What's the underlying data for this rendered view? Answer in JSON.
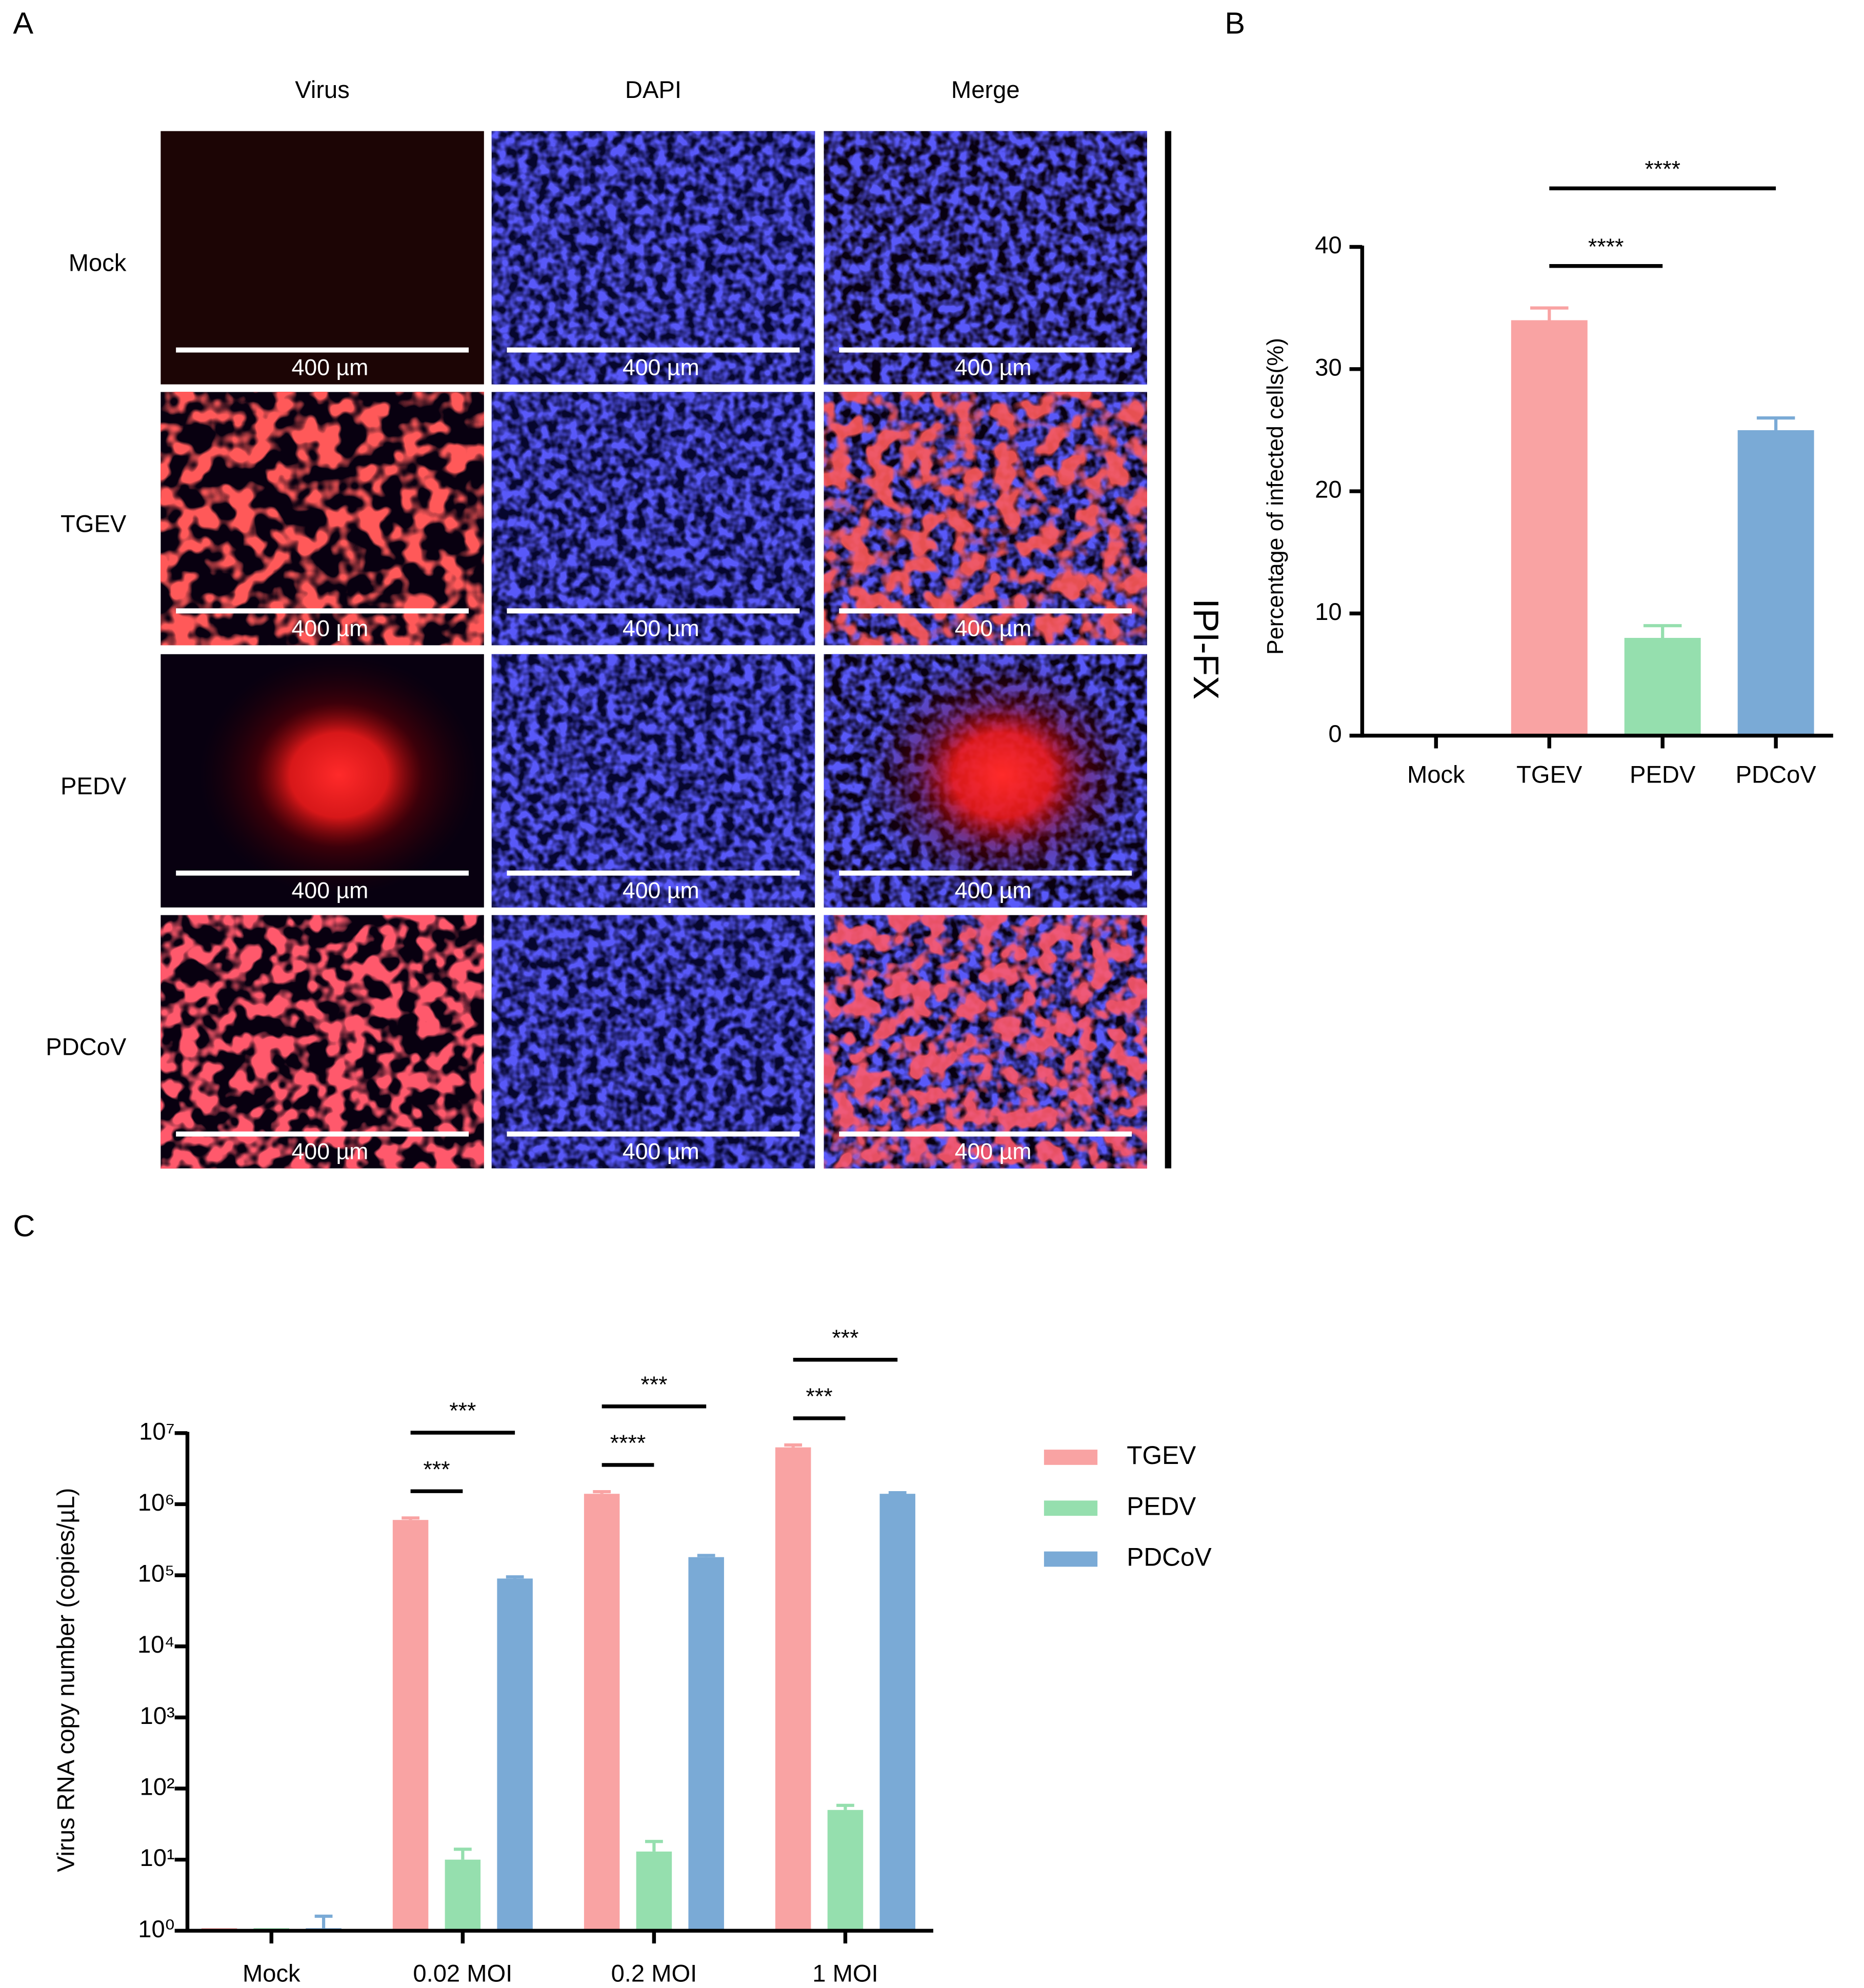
{
  "panel_labels": [
    "A",
    "B",
    "C"
  ],
  "micrographs": {
    "columns": [
      "Virus",
      "DAPI",
      "Merge"
    ],
    "rows": [
      "Mock",
      "TGEV",
      "PEDV",
      "PDCoV"
    ],
    "scale_bar": "400 µm",
    "side_label": "IPI-FX"
  },
  "chart_data": [
    {
      "type": "bar",
      "ylabel": "Percentage of infected cells(%)",
      "categories": [
        "Mock",
        "TGEV",
        "PEDV",
        "PDCoV"
      ],
      "values": [
        0,
        34,
        8,
        25
      ],
      "errors": [
        0,
        1,
        1,
        1
      ],
      "colors": [
        "#f9a3a3",
        "#f9a3a3",
        "#95dfae",
        "#7aaad6"
      ],
      "ylim": [
        0,
        40
      ],
      "yticks": [
        0,
        10,
        20,
        30,
        40
      ],
      "annotations": [
        {
          "label": "****",
          "between": [
            1,
            2
          ]
        },
        {
          "label": "****",
          "between": [
            1,
            3
          ]
        }
      ]
    },
    {
      "type": "grouped-bar",
      "ylabel": "Virus RNA copy number (copies/µL)",
      "log_scale": true,
      "categories": [
        "Mock",
        "0.02 MOI",
        "0.2 MOI",
        "1 MOI"
      ],
      "series": [
        {
          "name": "TGEV",
          "color": "#f9a3a3",
          "values": [
            1,
            600000,
            1400000,
            6300000
          ],
          "errors": [
            0,
            40000,
            100000,
            500000
          ]
        },
        {
          "name": "PEDV",
          "color": "#95dfae",
          "values": [
            1,
            10,
            13,
            50
          ],
          "errors": [
            0,
            4,
            5,
            8
          ]
        },
        {
          "name": "PDCoV",
          "color": "#7aaad6",
          "values": [
            1,
            90000,
            180000,
            1400000
          ],
          "errors": [
            0.6,
            5000,
            10000,
            50000
          ]
        }
      ],
      "ylim": [
        1,
        10000000
      ],
      "yticks": [
        {
          "value": 1,
          "label": "10⁰"
        },
        {
          "value": 10,
          "label": "10¹"
        },
        {
          "value": 100,
          "label": "10²"
        },
        {
          "value": 1000,
          "label": "10³"
        },
        {
          "value": 10000,
          "label": "10⁴"
        },
        {
          "value": 100000,
          "label": "10⁵"
        },
        {
          "value": 1000000,
          "label": "10⁶"
        },
        {
          "value": 10000000,
          "label": "10⁷"
        }
      ],
      "legend": "right",
      "annotations": [
        {
          "label": "***",
          "category": 1,
          "between": [
            0,
            1
          ]
        },
        {
          "label": "***",
          "category": 1,
          "between": [
            0,
            2
          ]
        },
        {
          "label": "****",
          "category": 2,
          "between": [
            0,
            1
          ]
        },
        {
          "label": "***",
          "category": 2,
          "between": [
            0,
            2
          ]
        },
        {
          "label": "***",
          "category": 3,
          "between": [
            0,
            1
          ]
        },
        {
          "label": "***",
          "category": 3,
          "between": [
            0,
            2
          ]
        }
      ]
    }
  ]
}
